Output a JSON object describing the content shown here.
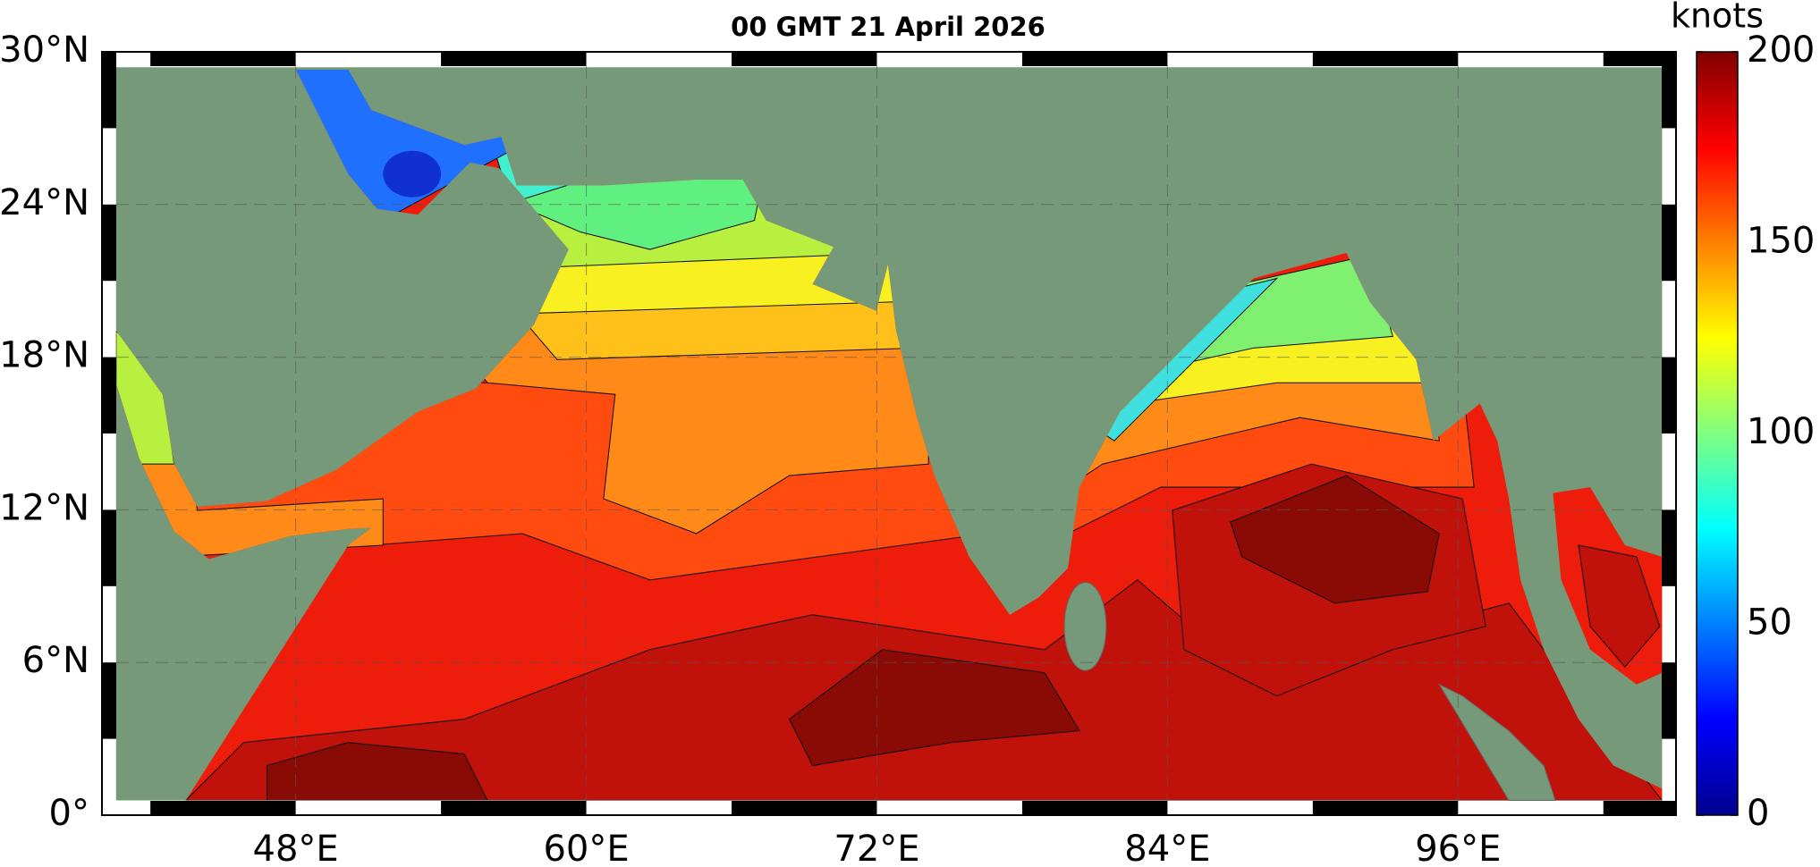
{
  "title": "00 GMT 21 April 2026",
  "map": {
    "xlim": [
      40,
      105
    ],
    "ylim": [
      0,
      30
    ],
    "xticks": [
      {
        "value": 48,
        "label": "48°E"
      },
      {
        "value": 60,
        "label": "60°E"
      },
      {
        "value": 72,
        "label": "72°E"
      },
      {
        "value": 84,
        "label": "84°E"
      },
      {
        "value": 96,
        "label": "96°E"
      }
    ],
    "yticks": [
      {
        "value": 0,
        "label": "0°"
      },
      {
        "value": 6,
        "label": "6°N"
      },
      {
        "value": 12,
        "label": "12°N"
      },
      {
        "value": 18,
        "label": "18°N"
      },
      {
        "value": 24,
        "label": "24°N"
      },
      {
        "value": 30,
        "label": "30°N"
      }
    ],
    "grid": true
  },
  "colorbar": {
    "label": "knots",
    "clim": [
      0,
      200
    ],
    "ticks": [
      0,
      50,
      100,
      150,
      200
    ]
  }
}
